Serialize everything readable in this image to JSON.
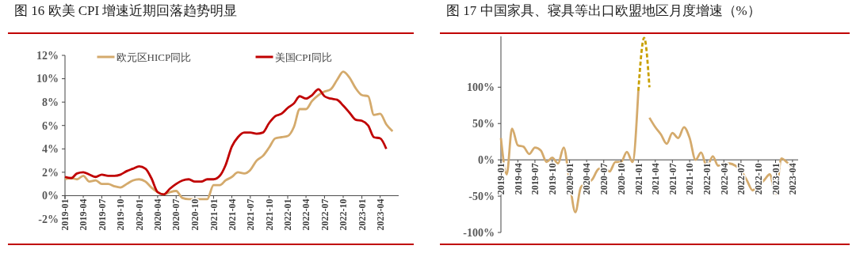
{
  "chart_data": [
    {
      "type": "line",
      "title": "图 16 欧美 CPI 增速近期回落趋势明显",
      "legend": "top",
      "ylim": [
        -2,
        12
      ],
      "yticks": [
        {
          "value": -2,
          "label": "-2%"
        },
        {
          "value": 0,
          "label": "0%"
        },
        {
          "value": 2,
          "label": "2%"
        },
        {
          "value": 4,
          "label": "4%"
        },
        {
          "value": 6,
          "label": "6%"
        },
        {
          "value": 8,
          "label": "8%"
        },
        {
          "value": 10,
          "label": "10%"
        },
        {
          "value": 12,
          "label": "12%"
        }
      ],
      "xlim": [
        "2019-01",
        "2023-07"
      ],
      "xticks": [
        "2019-01",
        "2019-04",
        "2019-07",
        "2019-10",
        "2020-01",
        "2020-04",
        "2020-07",
        "2020-10",
        "2021-01",
        "2021-04",
        "2021-07",
        "2021-10",
        "2022-01",
        "2022-04",
        "2022-07",
        "2022-10",
        "2023-01",
        "2023-04"
      ],
      "series": [
        {
          "name": "欧元区HICP同比",
          "color": "#d4aa6c",
          "x": [
            "2019-01",
            "2019-02",
            "2019-03",
            "2019-04",
            "2019-05",
            "2019-06",
            "2019-07",
            "2019-08",
            "2019-09",
            "2019-10",
            "2019-11",
            "2019-12",
            "2020-01",
            "2020-02",
            "2020-03",
            "2020-04",
            "2020-05",
            "2020-06",
            "2020-07",
            "2020-08",
            "2020-09",
            "2020-10",
            "2020-11",
            "2020-12",
            "2021-01",
            "2021-02",
            "2021-03",
            "2021-04",
            "2021-05",
            "2021-06",
            "2021-07",
            "2021-08",
            "2021-09",
            "2021-10",
            "2021-11",
            "2021-12",
            "2022-01",
            "2022-02",
            "2022-03",
            "2022-04",
            "2022-05",
            "2022-06",
            "2022-07",
            "2022-08",
            "2022-09",
            "2022-10",
            "2022-11",
            "2022-12",
            "2023-01",
            "2023-02",
            "2023-03",
            "2023-04",
            "2023-05",
            "2023-06"
          ],
          "values": [
            1.4,
            1.5,
            1.4,
            1.7,
            1.2,
            1.3,
            1.0,
            1.0,
            0.8,
            0.7,
            1.0,
            1.3,
            1.4,
            1.2,
            0.7,
            0.3,
            0.1,
            0.3,
            0.4,
            -0.2,
            -0.3,
            -0.3,
            -0.3,
            -0.3,
            0.9,
            0.9,
            1.3,
            1.6,
            2.0,
            1.9,
            2.2,
            3.0,
            3.4,
            4.1,
            4.9,
            5.0,
            5.1,
            5.9,
            7.4,
            7.4,
            8.1,
            8.6,
            8.9,
            9.1,
            9.9,
            10.6,
            10.1,
            9.2,
            8.6,
            8.5,
            6.9,
            7.0,
            6.1,
            5.5
          ]
        },
        {
          "name": "美国CPI同比",
          "color": "#c00000",
          "x": [
            "2019-01",
            "2019-02",
            "2019-03",
            "2019-04",
            "2019-05",
            "2019-06",
            "2019-07",
            "2019-08",
            "2019-09",
            "2019-10",
            "2019-11",
            "2019-12",
            "2020-01",
            "2020-02",
            "2020-03",
            "2020-04",
            "2020-05",
            "2020-06",
            "2020-07",
            "2020-08",
            "2020-09",
            "2020-10",
            "2020-11",
            "2020-12",
            "2021-01",
            "2021-02",
            "2021-03",
            "2021-04",
            "2021-05",
            "2021-06",
            "2021-07",
            "2021-08",
            "2021-09",
            "2021-10",
            "2021-11",
            "2021-12",
            "2022-01",
            "2022-02",
            "2022-03",
            "2022-04",
            "2022-05",
            "2022-06",
            "2022-07",
            "2022-08",
            "2022-09",
            "2022-10",
            "2022-11",
            "2022-12",
            "2023-01",
            "2023-02",
            "2023-03",
            "2023-04",
            "2023-05"
          ],
          "values": [
            1.6,
            1.5,
            1.9,
            2.0,
            1.8,
            1.6,
            1.8,
            1.7,
            1.7,
            1.8,
            2.1,
            2.3,
            2.5,
            2.3,
            1.5,
            0.3,
            0.1,
            0.6,
            1.0,
            1.3,
            1.4,
            1.2,
            1.2,
            1.4,
            1.4,
            1.7,
            2.6,
            4.2,
            5.0,
            5.4,
            5.4,
            5.3,
            5.4,
            6.2,
            6.8,
            7.0,
            7.5,
            7.9,
            8.5,
            8.3,
            8.6,
            9.1,
            8.5,
            8.3,
            8.2,
            7.7,
            7.1,
            6.5,
            6.4,
            6.0,
            5.0,
            4.9,
            4.0
          ]
        }
      ]
    },
    {
      "type": "line",
      "title": "图 17 中国家具、寝具等出口欧盟地区月度增速（%）",
      "ylim": [
        -100,
        170
      ],
      "yticks": [
        {
          "value": -100,
          "label": "-100%"
        },
        {
          "value": -50,
          "label": "-50%"
        },
        {
          "value": 0,
          "label": "0%"
        },
        {
          "value": 50,
          "label": "50%"
        },
        {
          "value": 100,
          "label": "100%"
        }
      ],
      "xlim": [
        "2019-01",
        "2023-05"
      ],
      "xticks": [
        "2019-01",
        "2019-04",
        "2019-07",
        "2019-10",
        "2020-01",
        "2020-04",
        "2020-07",
        "2020-10",
        "2021-01",
        "2021-04",
        "2021-07",
        "2021-10",
        "2022-01",
        "2022-04",
        "2022-07",
        "2022-10",
        "2023-01",
        "2023-04"
      ],
      "series": [
        {
          "color": "#d4aa6c",
          "x": [
            "2019-01",
            "2019-02",
            "2019-03",
            "2019-04",
            "2019-05",
            "2019-06",
            "2019-07",
            "2019-08",
            "2019-09",
            "2019-10",
            "2019-11",
            "2019-12",
            "2020-01",
            "2020-02",
            "2020-03",
            "2020-04",
            "2020-05",
            "2020-06",
            "2020-07",
            "2020-08",
            "2020-09",
            "2020-10",
            "2020-11",
            "2020-12",
            "2021-01",
            "2021-02",
            "2021-03",
            "2021-04",
            "2021-05",
            "2021-06",
            "2021-07",
            "2021-08",
            "2021-09",
            "2021-10",
            "2021-11",
            "2021-12",
            "2022-01",
            "2022-02",
            "2022-03",
            "2022-04",
            "2022-05",
            "2022-06",
            "2022-07",
            "2022-08",
            "2022-09",
            "2022-10",
            "2022-11",
            "2022-12",
            "2023-01",
            "2023-02",
            "2023-03",
            "2023-04"
          ],
          "values": [
            30,
            -20,
            43,
            20,
            18,
            8,
            17,
            13,
            -3,
            3,
            -5,
            17,
            -30,
            -72,
            -38,
            -32,
            -27,
            -13,
            -10,
            -16,
            -3,
            -3,
            11,
            -3,
            95,
            null,
            58,
            45,
            35,
            22,
            37,
            30,
            45,
            30,
            0,
            10,
            -10,
            5,
            -8,
            -5,
            -5,
            -8,
            -15,
            -28,
            -42,
            -35,
            -28,
            -20,
            -47,
            2,
            -3,
            -12
          ]
        },
        {
          "color": "#c8a000",
          "line_style": "dashed",
          "x": [
            "2021-01",
            "2021-02",
            "2021-03"
          ],
          "values": [
            95,
            168,
            100
          ]
        }
      ]
    }
  ]
}
